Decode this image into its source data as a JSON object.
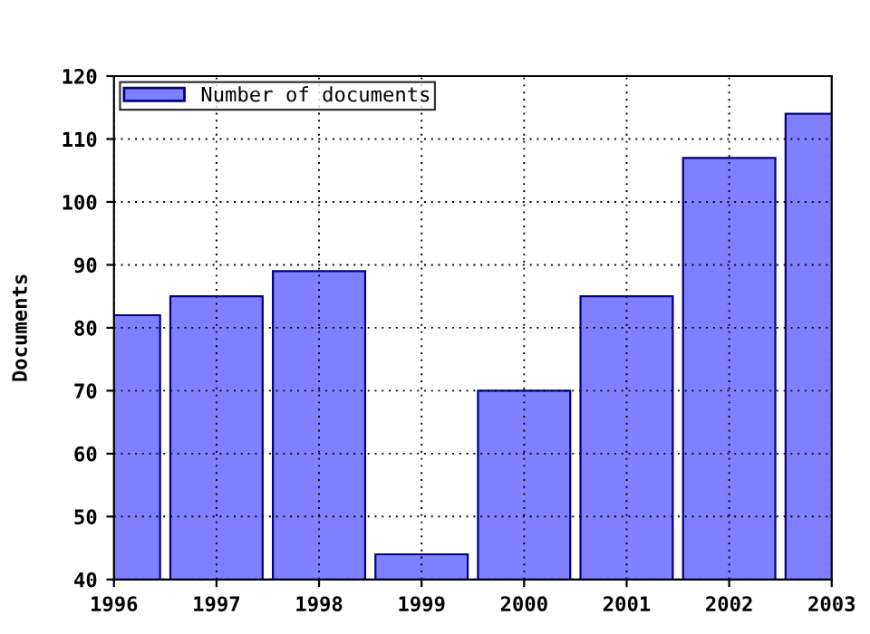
{
  "chart_data": {
    "type": "bar",
    "ylabel": "Documents",
    "x": [
      1996,
      1997,
      1998,
      1999,
      2000,
      2001,
      2002,
      2003
    ],
    "series": [
      {
        "name": "Number of documents",
        "color": "#8080ff",
        "values": [
          82,
          85,
          89,
          44,
          70,
          85,
          107,
          114
        ]
      }
    ],
    "xlim": [
      1996,
      2003
    ],
    "xticks": [
      1996,
      1997,
      1998,
      1999,
      2000,
      2001,
      2002,
      2003
    ],
    "ylim": [
      40,
      120
    ],
    "yticks": [
      40,
      50,
      60,
      70,
      80,
      90,
      100,
      110,
      120
    ],
    "grid": true,
    "legend": "top left"
  }
}
